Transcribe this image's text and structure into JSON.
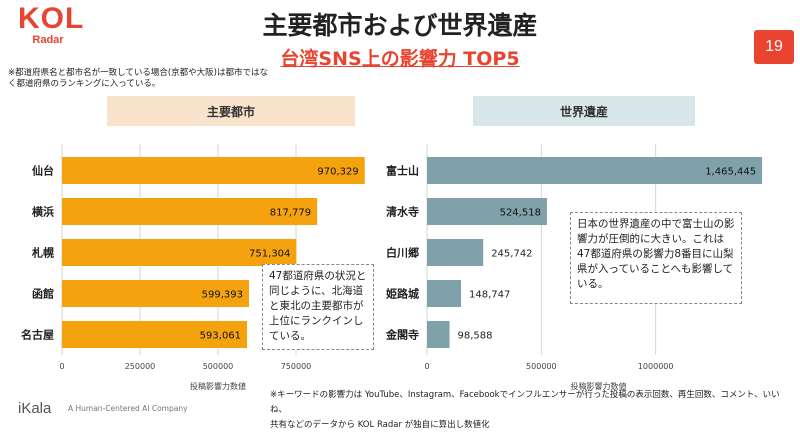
{
  "logo": {
    "main": "KOL",
    "sub": "Radar"
  },
  "header": {
    "title": "主要都市および世界遺産",
    "subtitle": "台湾SNS上の影響力 TOP5"
  },
  "page_number": "19",
  "note": "※都道府県名と都市名が一致している場合(京都や大阪)は都市ではなく都道府県のランキングに入っている。",
  "panels": {
    "left_header": "主要都市",
    "right_header": "世界遺産"
  },
  "callouts": {
    "left": "47都道府県の状況と同じように、北海道と東北の主要都市が上位にランクインしている。",
    "right": "日本の世界遺産の中で富士山の影響力が圧倒的に大きい。これは47都道府県の影響力8番目に山梨県が入っていることへも影響している。"
  },
  "footer": {
    "note_line1": "※キーワードの影響力は YouTube、Instagram、Facebookでインフルエンサーが行った投稿の表示回数、再生回数、コメント、いいね、",
    "note_line2": "共有などのデータから KOL Radar が独自に算出し数値化",
    "brand": "iKala",
    "tagline": "A Human-Centered AI Company"
  },
  "colors": {
    "accent": "#e8442f",
    "left_bar": "#f5a20f",
    "right_bar": "#7fa1aa"
  },
  "chart_data": [
    {
      "type": "bar",
      "orientation": "horizontal",
      "categories": [
        "仙台",
        "横浜",
        "札幌",
        "函館",
        "名古屋"
      ],
      "values": [
        970329,
        817779,
        751304,
        599393,
        593061
      ],
      "value_labels": [
        "970,329",
        "817,779",
        "751,304",
        "599,393",
        "593,061"
      ],
      "xlabel": "投稿影響力数値",
      "xlim": [
        0,
        1000000
      ],
      "ticks": [
        0,
        250000,
        500000,
        750000
      ],
      "tick_labels": [
        "0",
        "250000",
        "500000",
        "750000"
      ],
      "grid": true
    },
    {
      "type": "bar",
      "orientation": "horizontal",
      "categories": [
        "富士山",
        "清水寺",
        "白川郷",
        "姫路城",
        "金閣寺"
      ],
      "values": [
        1465445,
        524518,
        245742,
        148747,
        98588
      ],
      "value_labels": [
        "1,465,445",
        "524,518",
        "245,742",
        "148,747",
        "98,588"
      ],
      "xlabel": "投稿影響力数値",
      "xlim": [
        0,
        1500000
      ],
      "ticks": [
        0,
        500000,
        1000000
      ],
      "tick_labels": [
        "0",
        "500000",
        "1000000"
      ],
      "grid": true
    }
  ]
}
